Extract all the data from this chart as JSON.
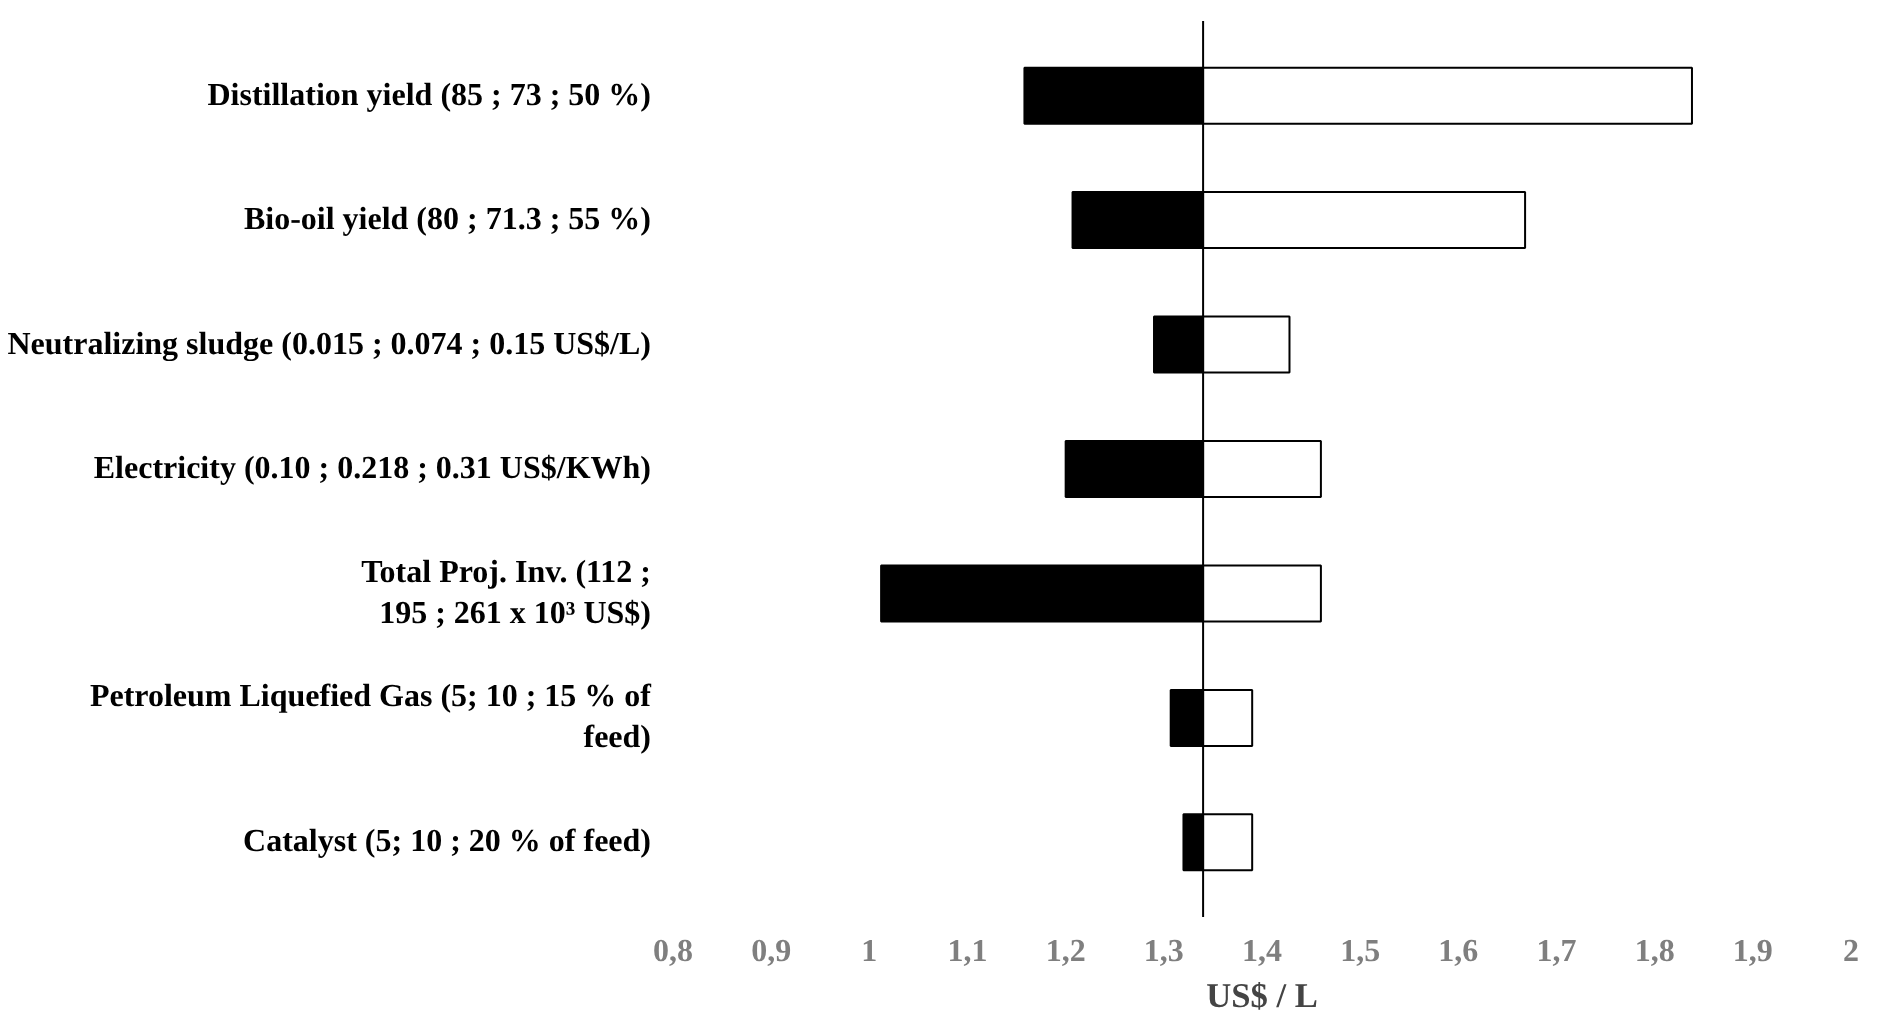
{
  "chart_data": {
    "type": "bar",
    "orientation": "horizontal",
    "xlabel": "US$ / L",
    "categories": [
      "Distillation yield (85 ; 73 ; 50 %)",
      "Bio-oil yield (80 ; 71.3 ; 55 %)",
      "Neutralizing sludge (0.015 ; 0.074 ; 0.15 US$/L)",
      "Electricity (0.10 ; 0.218 ; 0.31 US$/KWh)",
      "Total Proj. Inv. (112 ;\n195 ; 261 x 10³ US$)",
      "Petroleum Liquefied Gas (5; 10 ; 15 % of\nfeed)",
      "Catalyst (5; 10 ; 20 % of feed)"
    ],
    "series": [
      {
        "color": "#000000",
        "base": [
          1.158,
          1.207,
          1.29,
          1.2,
          1.012,
          1.307,
          1.32
        ],
        "values": [
          0.182,
          0.133,
          0.05,
          0.14,
          0.328,
          0.033,
          0.02
        ]
      },
      {
        "color": "#ffffff",
        "base": [
          1.34,
          1.34,
          1.34,
          1.34,
          1.34,
          1.34,
          1.34
        ],
        "values": [
          0.498,
          0.328,
          0.088,
          0.12,
          0.12,
          0.05,
          0.05
        ]
      }
    ],
    "xlim": [
      0.8,
      2
    ],
    "xticks": [
      {
        "value": 0.8,
        "label": "0,8"
      },
      {
        "value": 0.9,
        "label": "0,9"
      },
      1,
      {
        "value": 1.1,
        "label": "1,1"
      },
      {
        "value": 1.2,
        "label": "1,2"
      },
      {
        "value": 1.3,
        "label": "1,3"
      },
      {
        "value": 1.4,
        "label": "1,4"
      },
      {
        "value": 1.5,
        "label": "1,5"
      },
      {
        "value": 1.6,
        "label": "1,6"
      },
      {
        "value": 1.7,
        "label": "1,7"
      },
      {
        "value": 1.8,
        "label": "1,8"
      },
      {
        "value": 1.9,
        "label": "1,9"
      },
      2
    ],
    "ref_lines": [
      {
        "axis": "x",
        "value": 1.34,
        "color": "#000000"
      }
    ],
    "grid": false
  }
}
